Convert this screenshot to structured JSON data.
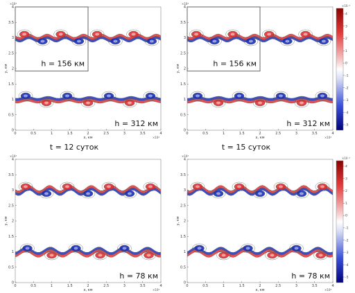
{
  "panels": [
    {
      "id": "tl",
      "h_top": "h = 156 км",
      "h_bottom": "h = 312 км",
      "time": "t = 12 суток"
    },
    {
      "id": "tr",
      "h_top": "h = 156 км",
      "h_bottom": "h = 312 км",
      "time": "t = 15 суток"
    },
    {
      "id": "bl",
      "h_top": "",
      "h_bottom": "h = 78 км",
      "time": ""
    },
    {
      "id": "br",
      "h_top": "",
      "h_bottom": "h = 78 км",
      "time": ""
    }
  ],
  "axes": {
    "xlabel": "x, км",
    "ylabel": "y, км",
    "x_ticks": [
      "0",
      "0.5",
      "1",
      "1.5",
      "2",
      "2.5",
      "3",
      "3.5",
      "4"
    ],
    "y_ticks": [
      "0",
      "0.5",
      "1",
      "1.5",
      "2",
      "2.5",
      "3",
      "3.5",
      "4"
    ],
    "x_exp": "×10⁴",
    "y_exp": "×10⁴"
  },
  "colorbars": [
    {
      "ticks": [
        "4",
        "3",
        "2",
        "1",
        "0",
        "-1",
        "-2",
        "-3",
        "-4",
        "-5"
      ],
      "exp": "×10⁻⁵"
    },
    {
      "ticks": [
        "4",
        "3",
        "2",
        "1",
        "0",
        "-1",
        "-2",
        "-3",
        "-4",
        "-5"
      ],
      "exp": "×10⁻⁵"
    }
  ],
  "colors": {
    "red": "#e03030",
    "blue": "#1a2fb8",
    "contour": "#555555"
  }
}
